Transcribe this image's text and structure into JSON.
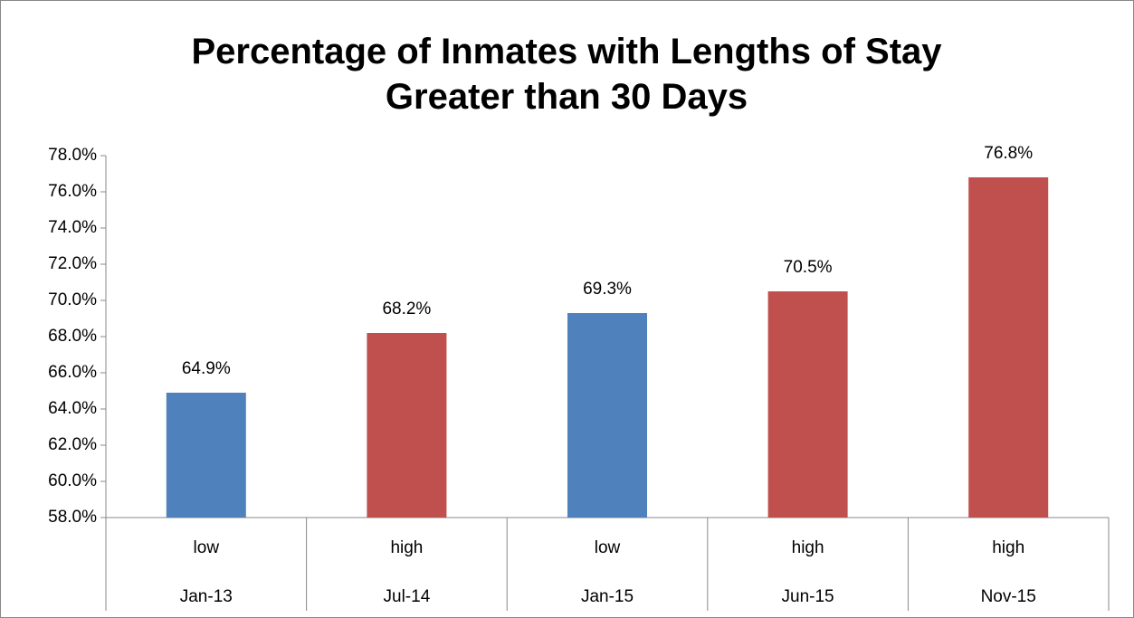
{
  "chart_data": {
    "type": "bar",
    "title": "Percentage of Inmates with Lengths of Stay Greater than 30 Days",
    "categories": [
      "Jan-13",
      "Jul-14",
      "Jan-15",
      "Jun-15",
      "Nov-15"
    ],
    "levels": [
      "low",
      "high",
      "low",
      "high",
      "high"
    ],
    "values": [
      64.9,
      68.2,
      69.3,
      70.5,
      76.8
    ],
    "value_labels": [
      "64.9%",
      "68.2%",
      "69.3%",
      "70.5%",
      "76.8%"
    ],
    "colors": [
      "#4f81bd",
      "#c0504d",
      "#4f81bd",
      "#c0504d",
      "#c0504d"
    ],
    "ylim": [
      58,
      78
    ],
    "yticks": [
      {
        "value": 58,
        "label": "58.0%"
      },
      {
        "value": 60,
        "label": "60.0%"
      },
      {
        "value": 62,
        "label": "62.0%"
      },
      {
        "value": 64,
        "label": "64.0%"
      },
      {
        "value": 66,
        "label": "66.0%"
      },
      {
        "value": 68,
        "label": "68.0%"
      },
      {
        "value": 70,
        "label": "70.0%"
      },
      {
        "value": 72,
        "label": "72.0%"
      },
      {
        "value": 74,
        "label": "74.0%"
      },
      {
        "value": 76,
        "label": "76.0%"
      },
      {
        "value": 78,
        "label": "78.0%"
      }
    ],
    "grid": false
  }
}
